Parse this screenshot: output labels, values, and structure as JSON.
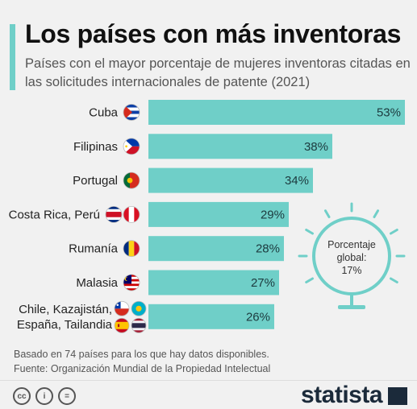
{
  "title": "Los países con más inventoras",
  "subtitle": "Países con el mayor porcentaje de mujeres inventoras citadas en las solicitudes internacionales de patente (2021)",
  "global": {
    "label": "Porcentaje global:",
    "value": "17%"
  },
  "note": "Basado en 74 países para los que hay datos disponibles.",
  "source": "Fuente: Organización Mundial de la Propiedad Intelectual",
  "brand": "statista",
  "colors": {
    "bar": "#6fcfc8",
    "accent": "#6fcfc8",
    "bulb": "#6fcfc8"
  },
  "icons": [
    "bulb-icon",
    "creative-commons-icon",
    "attribution-icon",
    "no-derivatives-icon"
  ],
  "chart_data": {
    "type": "bar",
    "orientation": "horizontal",
    "categories": [
      [
        "Cuba"
      ],
      [
        "Filipinas"
      ],
      [
        "Portugal"
      ],
      [
        "Costa Rica, Perú"
      ],
      [
        "Rumanía"
      ],
      [
        "Malasia"
      ],
      [
        "Chile, Kazajistán,",
        "España, Tailandia"
      ]
    ],
    "flags": [
      [
        "cu"
      ],
      [
        "ph"
      ],
      [
        "pt"
      ],
      [
        "cr",
        "pe"
      ],
      [
        "ro"
      ],
      [
        "my"
      ],
      [
        "cl",
        "kz",
        "es",
        "th"
      ]
    ],
    "values": [
      53,
      38,
      34,
      29,
      28,
      27,
      26
    ],
    "value_labels": [
      "53%",
      "38%",
      "34%",
      "29%",
      "28%",
      "27%",
      "26%"
    ],
    "xlim": [
      0,
      53
    ],
    "grid": false,
    "legend": "none"
  }
}
